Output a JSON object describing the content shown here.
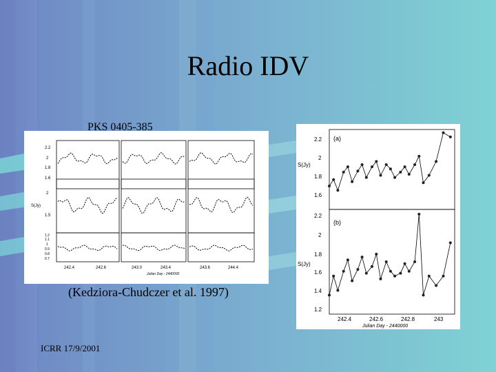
{
  "slide": {
    "title": "Radio IDV",
    "source_label": "PKS 0405-385",
    "citation": "(Kedziora-Chudczer et al. 1997)",
    "footer": "ICRR 17/9/2001",
    "colors": {
      "background_left": "#6e8ec8",
      "background_right": "#7ecfd4",
      "panel": "#ffffff",
      "ink": "#000000"
    }
  },
  "figures": {
    "left": {
      "y_label": "S(Jy)",
      "top_ticks": [
        "2.2",
        "2",
        "1.8",
        "1.6"
      ],
      "mid_ticks": [
        "2",
        "1.5"
      ],
      "bottom_ticks": [
        "1.2",
        "1.1",
        "1",
        "0.9",
        "0.8",
        "0.7"
      ],
      "x_ticks": [
        "242.4",
        "242.6",
        "243.0",
        "243.4",
        "243.6",
        "244.4",
        "244.6"
      ],
      "x_label": "Julian Day - 2440000"
    },
    "right": {
      "panel_a_label": "(a)",
      "panel_b_label": "(b)",
      "y_label": "S(Jy)",
      "a_ticks": [
        "2.2",
        "2",
        "1.8",
        "1.6"
      ],
      "b_ticks": [
        "2.2",
        "2",
        "1.8",
        "1.6",
        "1.4",
        "1.2"
      ],
      "x_ticks": [
        "242.4",
        "242.6",
        "242.8",
        "243"
      ],
      "x_label": "Julian Day - 2440000"
    }
  },
  "chart_data": [
    {
      "type": "scatter",
      "title": "",
      "xlabel": "Julian Day - 2440000",
      "ylabel": "S(Jy)",
      "x_ticks": [
        242.4,
        242.6,
        242.8,
        243
      ],
      "series": [
        {
          "panel": "(a)",
          "ylim": [
            1.5,
            2.25
          ],
          "x": [
            242.2,
            242.23,
            242.26,
            242.3,
            242.33,
            242.36,
            242.4,
            242.43,
            242.46,
            242.5,
            242.53,
            242.56,
            242.6,
            242.63,
            242.66,
            242.7,
            242.73,
            242.76,
            242.8,
            242.83,
            242.86,
            242.9,
            242.95,
            243.0,
            243.05
          ],
          "y": [
            1.72,
            1.78,
            1.68,
            1.85,
            1.9,
            1.76,
            1.86,
            1.92,
            1.8,
            1.9,
            1.95,
            1.82,
            1.92,
            1.88,
            1.8,
            1.85,
            1.9,
            1.83,
            1.92,
            2.0,
            1.75,
            1.82,
            1.95,
            2.22,
            2.18
          ]
        },
        {
          "panel": "(b)",
          "ylim": [
            1.15,
            2.25
          ],
          "x": [
            242.2,
            242.23,
            242.26,
            242.3,
            242.33,
            242.36,
            242.4,
            242.43,
            242.46,
            242.5,
            242.53,
            242.56,
            242.6,
            242.63,
            242.66,
            242.7,
            242.73,
            242.76,
            242.8,
            242.83,
            242.86,
            242.9,
            242.95,
            243.0,
            243.05
          ],
          "y": [
            1.35,
            1.55,
            1.4,
            1.6,
            1.72,
            1.5,
            1.62,
            1.75,
            1.58,
            1.65,
            1.78,
            1.52,
            1.7,
            1.6,
            1.55,
            1.58,
            1.68,
            1.6,
            1.7,
            2.2,
            1.35,
            1.55,
            1.45,
            1.55,
            1.9
          ]
        }
      ]
    }
  ]
}
